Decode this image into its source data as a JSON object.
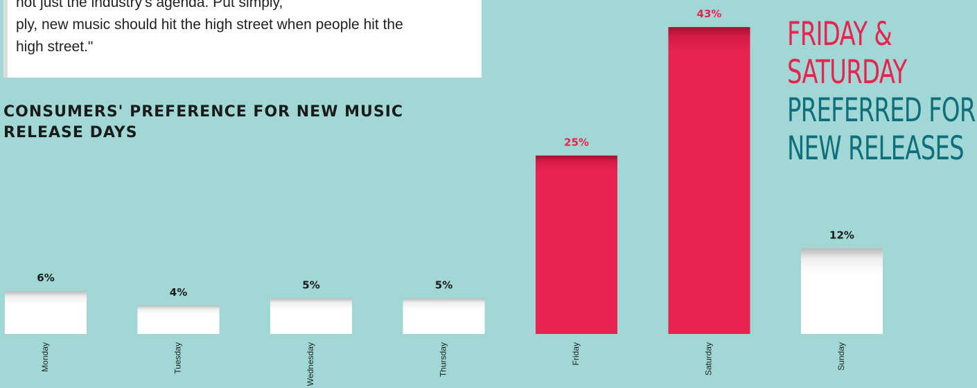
{
  "quote": {
    "lines": [
      "not just the industry's agenda. Put simply,",
      "ply, new music should hit the high street when people hit the",
      "high street.\""
    ]
  },
  "headline": {
    "line1_red": "FRIDAY",
    "line1_amp": " &",
    "line2_red": "SATURDAY",
    "line3": "PREFERRED FOR",
    "line4": "NEW RELEASES"
  },
  "colors": {
    "background": "#a1d8d5",
    "highlight": "#e8234f",
    "normal_bar": "#ffffff",
    "teal_text": "#0f6e7c",
    "dark_text": "#1b1b1b"
  },
  "chart_data": {
    "type": "bar",
    "title": "CONSUMERS' PREFERENCE FOR NEW MUSIC RELEASE DAYS",
    "categories": [
      "Monday",
      "Tuesday",
      "Wednesday",
      "Thursday",
      "Friday",
      "Saturday",
      "Sunday"
    ],
    "values": [
      6,
      4,
      5,
      5,
      25,
      43,
      12
    ],
    "value_labels": [
      "6%",
      "4%",
      "5%",
      "5%",
      "25%",
      "43%",
      "12%"
    ],
    "highlighted": [
      false,
      false,
      false,
      false,
      true,
      true,
      false
    ],
    "unit": "%",
    "xlabel": "",
    "ylabel": "",
    "grid": false,
    "legend": "none"
  }
}
